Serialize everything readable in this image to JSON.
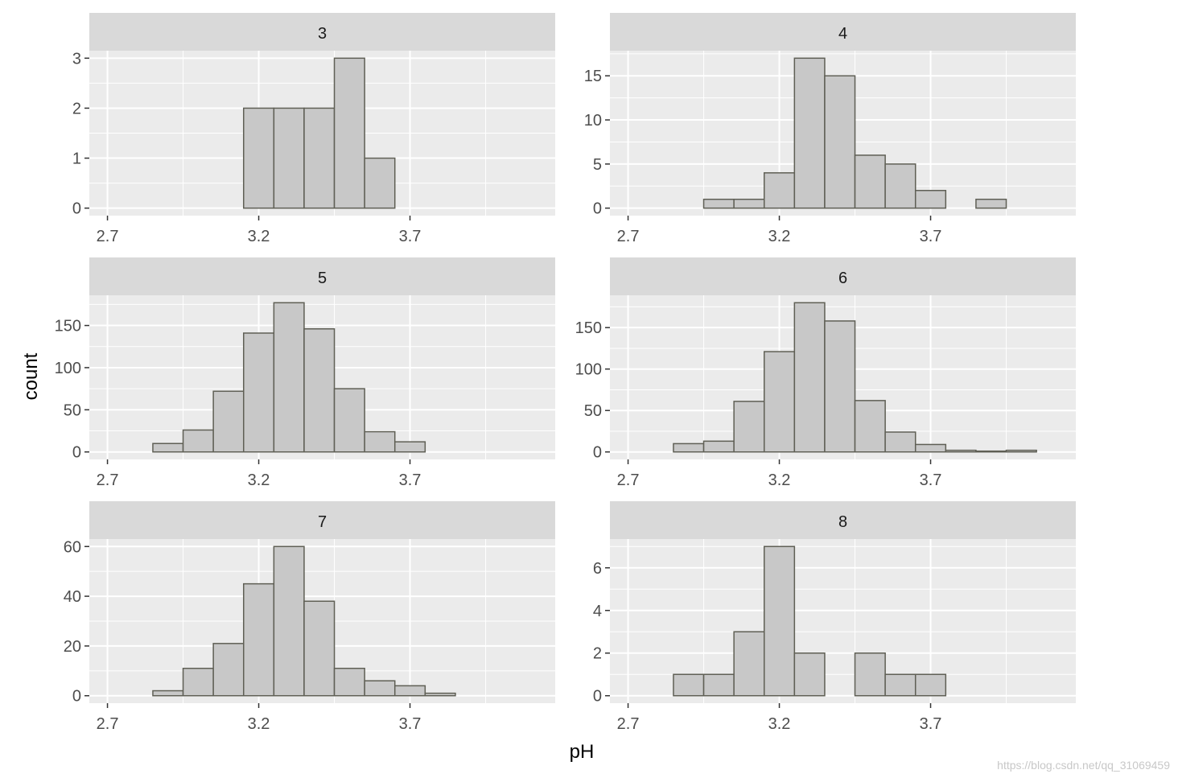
{
  "chart_data": {
    "type": "bar",
    "layout": "faceted histograms, 3 rows x 2 columns",
    "xlabel": "pH",
    "ylabel": "count",
    "bin_width": 0.1,
    "bin_centers": [
      2.8,
      2.9,
      3.0,
      3.1,
      3.2,
      3.3,
      3.4,
      3.5,
      3.6,
      3.7,
      3.8,
      3.9,
      4.0
    ],
    "xlim": [
      2.64,
      4.18
    ],
    "x_ticks": [
      2.7,
      3.2,
      3.7
    ],
    "x_tick_labels": [
      "2.7",
      "3.2",
      "3.7"
    ],
    "colors": {
      "bar_fill": "#c8c8c8",
      "bar_stroke": "#5f5f55",
      "panel_bg": "#ebebeb",
      "strip_bg": "#d9d9d9",
      "grid": "#ffffff"
    },
    "facets": [
      {
        "label": "3",
        "values": [
          0,
          0,
          0,
          0,
          2,
          2,
          2,
          3,
          1,
          0,
          0,
          0,
          0
        ],
        "ylim": [
          -0.15,
          3.15
        ],
        "y_ticks": [
          0,
          1,
          2,
          3
        ],
        "y_tick_labels": [
          "0",
          "1",
          "2",
          "3"
        ]
      },
      {
        "label": "4",
        "values": [
          0,
          0,
          1,
          1,
          4,
          17,
          15,
          6,
          5,
          2,
          0,
          1,
          0
        ],
        "ylim": [
          -0.85,
          17.85
        ],
        "y_ticks": [
          0,
          5,
          10,
          15
        ],
        "y_tick_labels": [
          "0",
          "5",
          "10",
          "15"
        ]
      },
      {
        "label": "5",
        "values": [
          0,
          10,
          26,
          72,
          141,
          177,
          146,
          75,
          24,
          12,
          0,
          0,
          0
        ],
        "ylim": [
          -8.85,
          185.85
        ],
        "y_ticks": [
          0,
          50,
          100,
          150
        ],
        "y_tick_labels": [
          "0",
          "50",
          "100",
          "150"
        ]
      },
      {
        "label": "6",
        "values": [
          0,
          10,
          13,
          61,
          121,
          180,
          158,
          62,
          24,
          9,
          2,
          1,
          2
        ],
        "ylim": [
          -9,
          189
        ],
        "y_ticks": [
          0,
          50,
          100,
          150
        ],
        "y_tick_labels": [
          "0",
          "50",
          "100",
          "150"
        ]
      },
      {
        "label": "7",
        "values": [
          0,
          2,
          11,
          21,
          45,
          60,
          38,
          11,
          6,
          4,
          1,
          0,
          0
        ],
        "ylim": [
          -3,
          63
        ],
        "y_ticks": [
          0,
          20,
          40,
          60
        ],
        "y_tick_labels": [
          "0",
          "20",
          "40",
          "60"
        ]
      },
      {
        "label": "8",
        "values": [
          0,
          1,
          1,
          3,
          7,
          2,
          0,
          2,
          1,
          1,
          0,
          0,
          0
        ],
        "ylim": [
          -0.35,
          7.35
        ],
        "y_ticks": [
          0,
          2,
          4,
          6
        ],
        "y_tick_labels": [
          "0",
          "2",
          "4",
          "6"
        ]
      }
    ]
  },
  "watermark": "https://blog.csdn.net/qq_31069459"
}
